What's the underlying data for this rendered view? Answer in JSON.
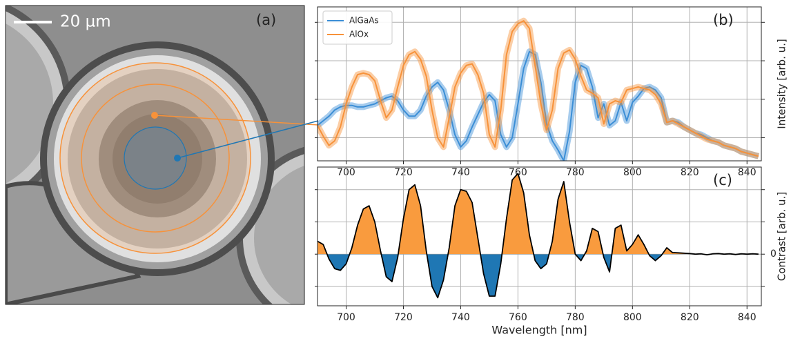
{
  "image": {
    "scale_bar": "20 µm",
    "panel_label": "(a)"
  },
  "chart_data": [
    {
      "type": "line",
      "panel_label": "(b)",
      "ylabel": "Intensity [arb. u.]",
      "xlim": [
        690,
        845
      ],
      "xticks": [
        700,
        720,
        740,
        760,
        780,
        800,
        820,
        840
      ],
      "ylim": [
        0,
        1
      ],
      "unlabeled_yticks": [
        0.15,
        0.4,
        0.65,
        0.9
      ],
      "grid": true,
      "legend": "upper left",
      "x": [
        690,
        692,
        694,
        696,
        698,
        700,
        702,
        704,
        706,
        708,
        710,
        712,
        714,
        716,
        718,
        720,
        722,
        724,
        726,
        728,
        730,
        732,
        734,
        736,
        738,
        740,
        742,
        744,
        746,
        748,
        750,
        752,
        754,
        756,
        758,
        760,
        762,
        764,
        766,
        768,
        770,
        772,
        774,
        776,
        778,
        780,
        782,
        784,
        786,
        788,
        790,
        792,
        794,
        796,
        798,
        800,
        802,
        804,
        806,
        808,
        810,
        812,
        814,
        816,
        818,
        820,
        822,
        824,
        826,
        828,
        830,
        832,
        834,
        836,
        838,
        840,
        842,
        844
      ],
      "series": [
        {
          "name": "AlGaAs",
          "color": "#3b8ed6",
          "values": [
            0.23,
            0.26,
            0.29,
            0.33,
            0.35,
            0.36,
            0.36,
            0.35,
            0.35,
            0.36,
            0.37,
            0.39,
            0.41,
            0.42,
            0.39,
            0.33,
            0.29,
            0.29,
            0.33,
            0.42,
            0.48,
            0.51,
            0.46,
            0.33,
            0.17,
            0.09,
            0.13,
            0.22,
            0.3,
            0.38,
            0.43,
            0.39,
            0.17,
            0.09,
            0.15,
            0.37,
            0.6,
            0.71,
            0.69,
            0.51,
            0.24,
            0.13,
            0.07,
            0.0,
            0.19,
            0.51,
            0.62,
            0.6,
            0.48,
            0.28,
            0.37,
            0.23,
            0.26,
            0.38,
            0.26,
            0.38,
            0.42,
            0.47,
            0.48,
            0.46,
            0.41,
            0.25,
            0.26,
            0.25,
            0.22,
            0.2,
            0.18,
            0.17,
            0.15,
            0.13,
            0.12,
            0.1,
            0.09,
            0.08,
            0.06,
            0.05,
            0.04,
            0.03
          ]
        },
        {
          "name": "AlOx",
          "color": "#f7923a",
          "values": [
            0.23,
            0.16,
            0.1,
            0.13,
            0.22,
            0.37,
            0.48,
            0.56,
            0.57,
            0.56,
            0.52,
            0.39,
            0.28,
            0.33,
            0.48,
            0.62,
            0.69,
            0.71,
            0.66,
            0.55,
            0.33,
            0.15,
            0.09,
            0.28,
            0.48,
            0.57,
            0.62,
            0.63,
            0.56,
            0.44,
            0.17,
            0.09,
            0.33,
            0.69,
            0.84,
            0.89,
            0.91,
            0.86,
            0.62,
            0.37,
            0.2,
            0.33,
            0.6,
            0.7,
            0.72,
            0.66,
            0.55,
            0.46,
            0.44,
            0.41,
            0.24,
            0.37,
            0.39,
            0.38,
            0.46,
            0.47,
            0.48,
            0.47,
            0.46,
            0.43,
            0.37,
            0.25,
            0.26,
            0.24,
            0.22,
            0.2,
            0.18,
            0.16,
            0.14,
            0.13,
            0.12,
            0.1,
            0.09,
            0.08,
            0.06,
            0.05,
            0.04,
            0.03
          ]
        }
      ]
    },
    {
      "type": "signed_area",
      "panel_label": "(c)",
      "ylabel": "Contrast [arb. u.]",
      "xlabel": "Wavelength [nm]",
      "xlim": [
        690,
        845
      ],
      "xticks": [
        700,
        720,
        740,
        760,
        780,
        800,
        820,
        840
      ],
      "ylim": [
        -1.6,
        2.7
      ],
      "yticks": [
        0
      ],
      "unlabeled_yticks": [
        -1,
        1,
        2
      ],
      "grid": true,
      "positive_color": "#f99b3e",
      "negative_color": "#1f77b4",
      "line_color": "#000000",
      "x": [
        690,
        692,
        694,
        696,
        698,
        700,
        702,
        704,
        706,
        708,
        710,
        712,
        714,
        716,
        718,
        720,
        722,
        724,
        726,
        728,
        730,
        732,
        734,
        736,
        738,
        740,
        742,
        744,
        746,
        748,
        750,
        752,
        754,
        756,
        758,
        760,
        762,
        764,
        766,
        768,
        770,
        772,
        774,
        776,
        778,
        780,
        782,
        784,
        786,
        788,
        790,
        792,
        794,
        796,
        798,
        800,
        802,
        804,
        806,
        808,
        810,
        812,
        814,
        816,
        818,
        820,
        822,
        824,
        826,
        828,
        830,
        832,
        834,
        836,
        838,
        840,
        842,
        844
      ],
      "values": [
        0.4,
        0.3,
        -0.15,
        -0.45,
        -0.5,
        -0.3,
        0.2,
        0.9,
        1.4,
        1.5,
        1.0,
        0.1,
        -0.7,
        -0.85,
        -0.1,
        1.1,
        2.0,
        2.15,
        1.5,
        0.1,
        -1.0,
        -1.35,
        -0.8,
        0.2,
        1.5,
        2.0,
        1.95,
        1.6,
        0.5,
        -0.6,
        -1.3,
        -1.3,
        -0.3,
        1.1,
        2.3,
        2.5,
        1.9,
        0.6,
        -0.2,
        -0.45,
        -0.3,
        0.4,
        1.7,
        2.25,
        1.0,
        0.0,
        -0.2,
        0.1,
        0.8,
        0.7,
        -0.1,
        -0.55,
        0.8,
        0.9,
        0.1,
        0.3,
        0.6,
        0.3,
        -0.05,
        -0.2,
        -0.05,
        0.2,
        0.05,
        0.04,
        0.03,
        0.02,
        0.0,
        0.01,
        -0.02,
        0.01,
        0.02,
        0.0,
        0.01,
        -0.01,
        0.01,
        0.0,
        0.01,
        0.0
      ]
    }
  ]
}
